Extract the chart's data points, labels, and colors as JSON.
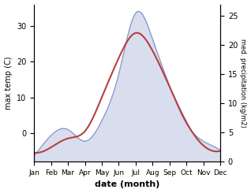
{
  "months": [
    "Jan",
    "Feb",
    "Mar",
    "Apr",
    "May",
    "Jun",
    "Jul",
    "Aug",
    "Sep",
    "Oct",
    "Nov",
    "Dec"
  ],
  "month_positions": [
    0,
    1,
    2,
    3,
    4,
    5,
    6,
    7,
    8,
    9,
    10,
    11
  ],
  "temperature": [
    -5.5,
    -4.0,
    -1.5,
    0.5,
    10.0,
    21.0,
    28.0,
    23.0,
    13.0,
    3.0,
    -3.5,
    -5.0
  ],
  "precipitation": [
    1.0,
    4.5,
    5.5,
    3.5,
    7.0,
    15.0,
    25.5,
    21.0,
    13.0,
    6.5,
    3.5,
    2.0
  ],
  "temp_color": "#b84040",
  "precip_fill_color": "#b8c4e0",
  "precip_line_color": "#8899cc",
  "temp_ylim": [
    -8,
    36
  ],
  "precip_ylim": [
    0,
    27
  ],
  "temp_yticks": [
    0,
    10,
    20,
    30
  ],
  "precip_yticks": [
    0,
    5,
    10,
    15,
    20,
    25
  ],
  "ylabel_left": "max temp (C)",
  "ylabel_right": "med. precipitation (kg/m2)",
  "xlabel": "date (month)",
  "figsize": [
    3.18,
    2.45
  ],
  "dpi": 100
}
